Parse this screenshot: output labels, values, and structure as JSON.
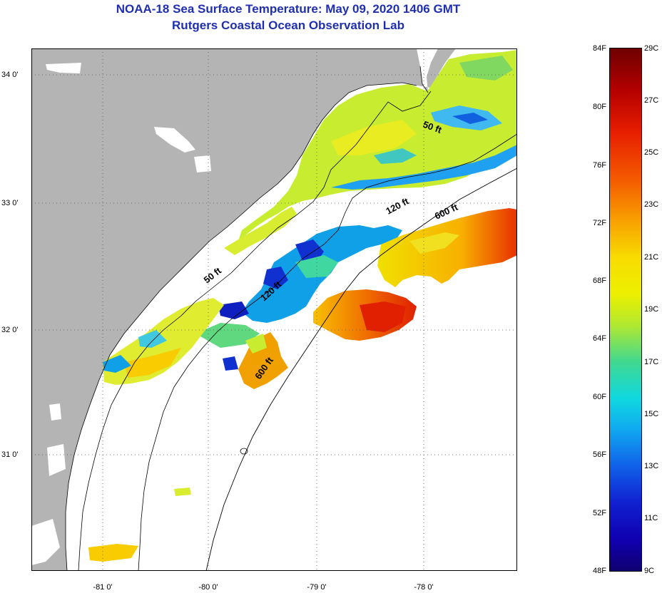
{
  "title": "NOAA-18 Sea Surface Temperature:  May 09, 2020 1406 GMT",
  "subtitle": "Rutgers Coastal Ocean Observation Lab",
  "axes": {
    "lon_labels": [
      "-81 0'",
      "-80 0'",
      "-79 0'",
      "-78 0'"
    ],
    "lat_labels": [
      "34 0'",
      "33 0'",
      "32 0'",
      "31 0'"
    ]
  },
  "isobath_labels": [
    "50 ft",
    "120 ft",
    "600 ft",
    "50 ft",
    "120 ft",
    "600 ft"
  ],
  "colorbar": {
    "fahrenheit": [
      "84F",
      "80F",
      "76F",
      "72F",
      "68F",
      "64F",
      "60F",
      "56F",
      "52F",
      "48F"
    ],
    "celsius": [
      "29C",
      "27C",
      "25C",
      "23C",
      "21C",
      "19C",
      "17C",
      "15C",
      "13C",
      "11C",
      "9C"
    ]
  },
  "colors": {
    "title": "#1f2fb0",
    "land": "#b4b4b4",
    "cloud": "#ffffff",
    "sst_cool": "#1040e0",
    "sst_mid": "#c8ec30",
    "sst_warm": "#e02000"
  }
}
